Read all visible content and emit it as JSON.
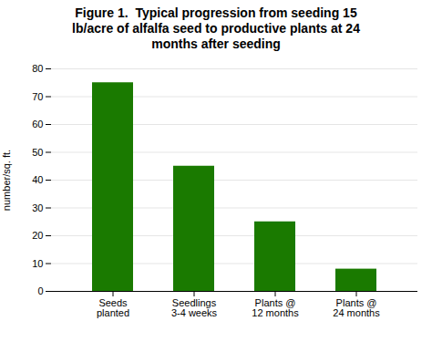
{
  "chart_data": {
    "type": "bar",
    "title": "Figure 1.  Typical progression from seeding 15\nlb/acre of alfalfa seed to productive plants at 24\nmonths after seeding",
    "categories": [
      "Seeds\nplanted",
      "Seedlings\n3-4 weeks",
      "Plants @\n12 months",
      "Plants @\n24 months"
    ],
    "values": [
      75,
      45,
      25,
      8
    ],
    "color": "#1a7a00",
    "ylabel": "number/sq. ft.",
    "ylim": [
      0,
      80
    ],
    "yticks": [
      0,
      10,
      20,
      30,
      40,
      50,
      60,
      70,
      80
    ],
    "grid": true
  }
}
